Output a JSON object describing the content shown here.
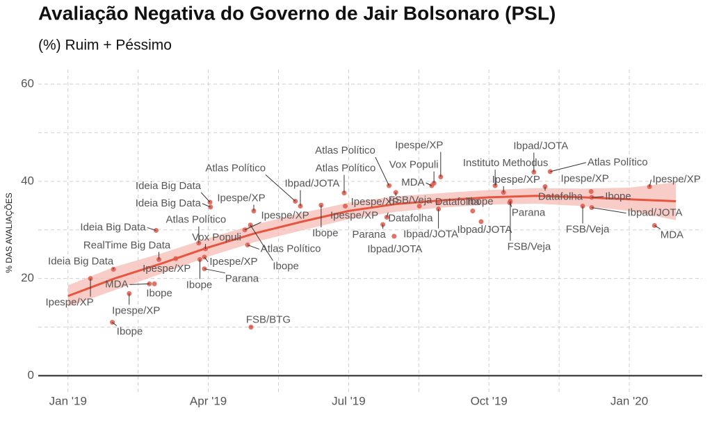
{
  "chart_data": {
    "type": "scatter",
    "title": "Avaliação Negativa do Governo de Jair Bolsonaro (PSL)",
    "subtitle": "(%) Ruim + Péssimo",
    "y_label": "% DAS AVALIAÇÕES",
    "xlim": [
      2018.947,
      2020.13
    ],
    "ylim": [
      -3.5,
      63
    ],
    "xticks": [
      {
        "value": 2019,
        "label": "Jan '19"
      },
      {
        "value": 2019.25,
        "label": "Apr '19"
      },
      {
        "value": 2019.5,
        "label": "Jul '19"
      },
      {
        "value": 2019.75,
        "label": "Oct '19"
      },
      {
        "value": 2020,
        "label": "Jan '20"
      }
    ],
    "yticks": [
      0,
      20,
      40,
      60
    ],
    "grid": true,
    "series": [
      {
        "color": "#e0584a",
        "x": [
          2019.04,
          2019.081,
          2019.079,
          2019.109,
          2019.145,
          2019.154,
          2019.157,
          2019.162,
          2019.192,
          2019.233,
          2019.245,
          2019.235,
          2019.243,
          2019.243,
          2019.253,
          2019.254,
          2019.32,
          2019.325,
          2019.331,
          2019.315,
          2019.326,
          2019.405,
          2019.414,
          2019.451,
          2019.492,
          2019.494,
          2019.572,
          2019.561,
          2019.568,
          2019.581,
          2019.584,
          2019.626,
          2019.648,
          2019.652,
          2019.664,
          2019.659,
          2019.66,
          2019.721,
          2019.736,
          2019.776,
          2019.761,
          2019.787,
          2019.788,
          2019.83,
          2019.85,
          2019.859,
          2019.917,
          2019.932,
          2019.933,
          2019.933,
          2020.036,
          2020.045
        ],
        "values": [
          20.0,
          21.9,
          11.0,
          16.9,
          18.9,
          18.9,
          29.9,
          23.9,
          24.1,
          27.3,
          26.1,
          23.9,
          24.4,
          22.0,
          35.7,
          34.7,
          26.9,
          31.0,
          33.9,
          30.0,
          10.0,
          35.9,
          34.9,
          35.1,
          37.6,
          34.9,
          39.1,
          31.1,
          32.6,
          28.7,
          37.7,
          34.9,
          39.1,
          39.6,
          40.9,
          35.7,
          34.3,
          33.9,
          31.7,
          37.7,
          39.1,
          35.6,
          35.9,
          41.9,
          38.9,
          42.0,
          34.9,
          37.9,
          36.7,
          34.6,
          38.9,
          30.9
        ],
        "labels": [
          "Ipespe/XP",
          "Ideia Big Data",
          "Ibope",
          "Ipespe/XP",
          "MDA",
          "Ibope",
          "Ideia Big Data",
          "RealTime Big Data",
          "Ipespe/XP",
          "Atlas Político",
          "Vox Populi",
          "Ibope",
          "Ipespe/XP",
          "Parana",
          "Ideia Big Data",
          "Ideia Big Data",
          "Atlas Político",
          "Ibope",
          "Ipespe/XP",
          "Ipespe/XP",
          "FSB/BTG",
          "Atlas Político",
          "Ibpad/JOTA",
          "Ibope",
          "Atlas Político",
          "Ipespe/XP",
          "Atlas Político",
          "Parana",
          "Datafolha",
          "Ibpad/JOTA",
          "Ipespe/XP",
          "FSB/Veja",
          "MDA",
          "Vox Populi",
          "Ipespe/XP",
          "Datafolha",
          "Ibpad/JOTA",
          "Ibope",
          "Ibpad/JOTA",
          "Ipespe/XP",
          "Instituto Methodus",
          "Parana",
          "FSB/Veja",
          "Ibpad/JOTA",
          "Datafolha",
          "Atlas Político",
          "FSB/Veja",
          "Ipespe/XP",
          "Ibope",
          "Ibpad/JOTA",
          "Ipespe/XP",
          "MDA"
        ]
      }
    ],
    "trend": {
      "color": "#e8553e",
      "band_color": "#f7bcb4",
      "x": [
        2019.0,
        2019.083,
        2019.167,
        2019.25,
        2019.333,
        2019.417,
        2019.5,
        2019.583,
        2019.667,
        2019.75,
        2019.833,
        2019.917,
        2020.0,
        2020.083
      ],
      "values": [
        16.4,
        20.0,
        23.1,
        26.4,
        29.3,
        31.7,
        33.9,
        35.3,
        36.1,
        36.7,
        37.0,
        36.7,
        36.3,
        35.9
      ],
      "lower": [
        14.2,
        17.6,
        21.0,
        24.5,
        27.5,
        29.9,
        32.2,
        33.7,
        34.6,
        35.2,
        35.4,
        34.9,
        33.9,
        32.0
      ],
      "upper": [
        18.6,
        22.4,
        25.2,
        28.3,
        31.1,
        33.5,
        35.6,
        36.9,
        37.6,
        38.2,
        38.6,
        38.5,
        38.7,
        39.8
      ]
    }
  }
}
